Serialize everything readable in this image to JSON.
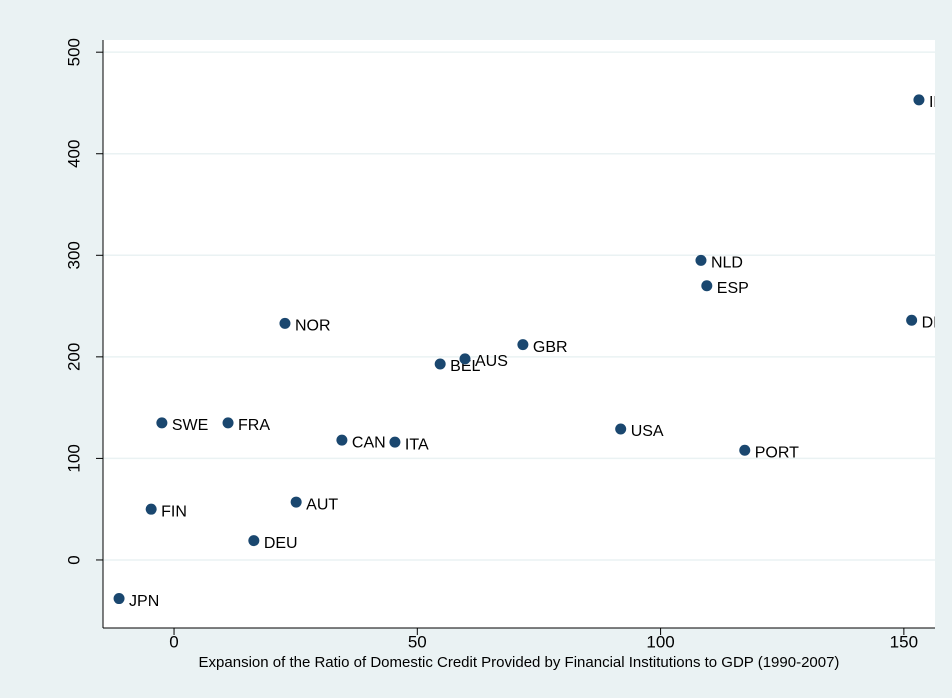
{
  "chart_data": {
    "type": "scatter",
    "xlabel": "Expansion of the Ratio of Domestic Credit Provided by Financial Institutions to GDP (1990-2007)",
    "labels": [
      "JPN",
      "FIN",
      "DEU",
      "AUT",
      "SWE",
      "FRA",
      "NOR",
      "CAN",
      "ITA",
      "BEL",
      "AUS",
      "GBR",
      "USA",
      "NLD",
      "ESP",
      "PORT",
      "DNK",
      "IRL"
    ],
    "x": [
      -11.3,
      -4.7,
      16.4,
      25.1,
      -2.5,
      11.1,
      22.8,
      34.5,
      45.4,
      54.7,
      59.8,
      71.7,
      91.8,
      108.3,
      109.5,
      117.3,
      151.6,
      153.1
    ],
    "values": [
      -38,
      50,
      19,
      57,
      135,
      135,
      233,
      118,
      116,
      193,
      198,
      212,
      129,
      295,
      270,
      108,
      236,
      453
    ],
    "color": "#1a476f",
    "xlim": [
      -14.6,
      156.4
    ],
    "ylim": [
      -67,
      512
    ],
    "xticks": [
      0,
      50,
      100,
      150
    ],
    "yticks": [
      0,
      100,
      200,
      300,
      400,
      500
    ],
    "grid": true
  }
}
